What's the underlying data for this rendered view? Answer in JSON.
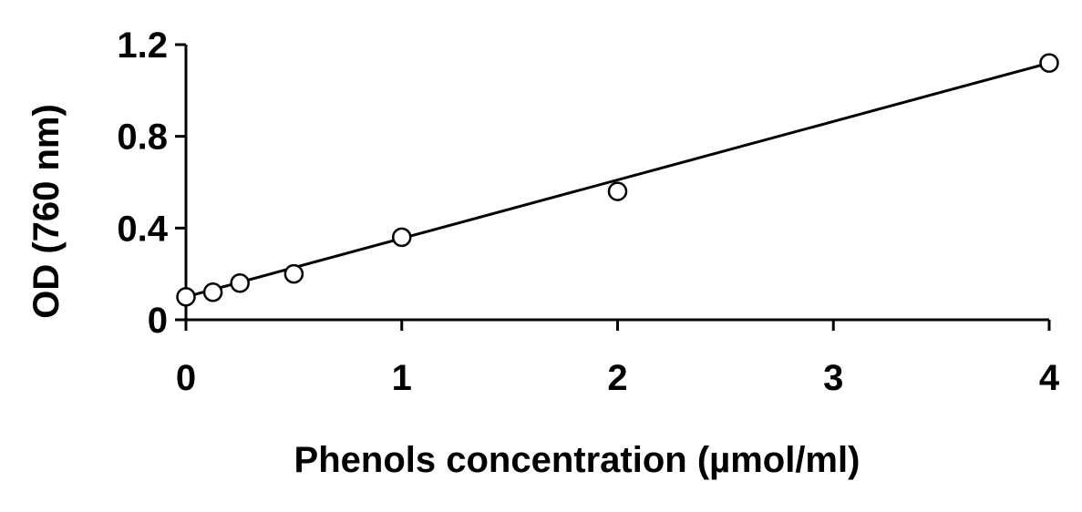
{
  "chart_data": {
    "type": "scatter",
    "title": "",
    "xlabel": "Phenols concentration (µmol/ml)",
    "ylabel": "OD (760 nm)",
    "xlim": [
      0,
      4
    ],
    "ylim": [
      0,
      1.2
    ],
    "xticks": [
      "0",
      "1",
      "2",
      "3",
      "4"
    ],
    "yticks": [
      "0",
      "0.4",
      "0.8",
      "1.2"
    ],
    "grid": false,
    "legend": "none",
    "series": [
      {
        "x": [
          0,
          0.125,
          0.25,
          0.5,
          1,
          2,
          4
        ],
        "y": [
          0.1,
          0.12,
          0.16,
          0.2,
          0.36,
          0.56,
          1.12
        ],
        "marker": "open-circle",
        "color": "#000000"
      }
    ],
    "trendline": {
      "type": "linear",
      "x": [
        0,
        4
      ],
      "y": [
        0.1,
        1.12
      ],
      "color": "#000000"
    }
  }
}
